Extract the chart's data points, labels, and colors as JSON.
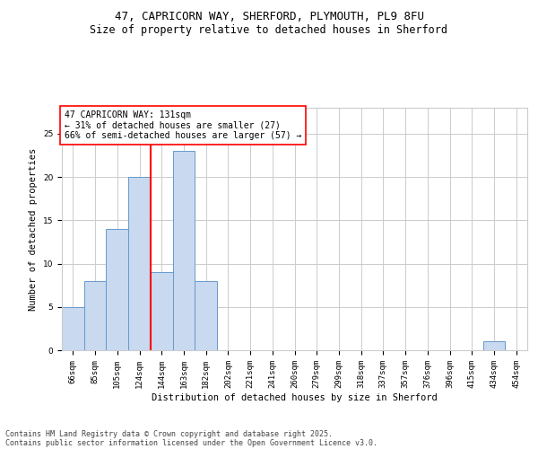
{
  "title1": "47, CAPRICORN WAY, SHERFORD, PLYMOUTH, PL9 8FU",
  "title2": "Size of property relative to detached houses in Sherford",
  "xlabel": "Distribution of detached houses by size in Sherford",
  "ylabel": "Number of detached properties",
  "categories": [
    "66sqm",
    "85sqm",
    "105sqm",
    "124sqm",
    "144sqm",
    "163sqm",
    "182sqm",
    "202sqm",
    "221sqm",
    "241sqm",
    "260sqm",
    "279sqm",
    "299sqm",
    "318sqm",
    "337sqm",
    "357sqm",
    "376sqm",
    "396sqm",
    "415sqm",
    "434sqm",
    "454sqm"
  ],
  "values": [
    5,
    8,
    14,
    20,
    9,
    23,
    8,
    0,
    0,
    0,
    0,
    0,
    0,
    0,
    0,
    0,
    0,
    0,
    0,
    1,
    0
  ],
  "bar_color": "#c9d9f0",
  "bar_edge_color": "#6699cc",
  "grid_color": "#cccccc",
  "vline_x": 3.5,
  "vline_color": "red",
  "annotation_text": "47 CAPRICORN WAY: 131sqm\n← 31% of detached houses are smaller (27)\n66% of semi-detached houses are larger (57) →",
  "annotation_box_color": "white",
  "annotation_box_edge": "red",
  "ylim": [
    0,
    28
  ],
  "yticks": [
    0,
    5,
    10,
    15,
    20,
    25
  ],
  "footnote1": "Contains HM Land Registry data © Crown copyright and database right 2025.",
  "footnote2": "Contains public sector information licensed under the Open Government Licence v3.0.",
  "title1_fontsize": 9,
  "title2_fontsize": 8.5,
  "axis_fontsize": 7.5,
  "tick_fontsize": 6.5,
  "annotation_fontsize": 7,
  "footnote_fontsize": 6
}
